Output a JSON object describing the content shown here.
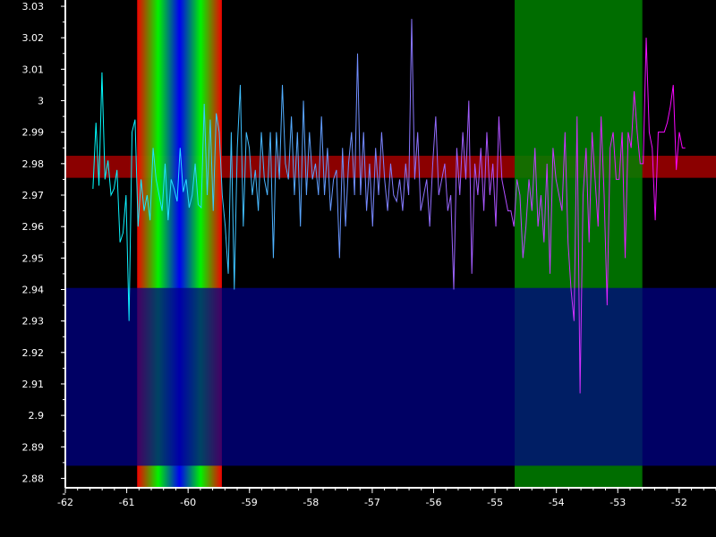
{
  "chart_data": {
    "type": "line",
    "title": "",
    "xlabel": "",
    "ylabel": "",
    "xlim": [
      -62,
      -51.4
    ],
    "ylim": [
      2.877,
      3.032
    ],
    "x_ticks": [
      -62,
      -61,
      -60,
      -59,
      -58,
      -57,
      -56,
      -55,
      -54,
      -53,
      -52
    ],
    "y_ticks": [
      2.88,
      2.89,
      2.9,
      2.91,
      2.92,
      2.93,
      2.94,
      2.95,
      2.96,
      2.97,
      2.98,
      2.99,
      3,
      3.01,
      3.02,
      3.03
    ],
    "x_tick_labels": [
      "-62",
      "-61",
      "-60",
      "-59",
      "-58",
      "-57",
      "-56",
      "-55",
      "-54",
      "-53",
      "-52"
    ],
    "y_tick_labels": [
      "2.88",
      "2.89",
      "2.9",
      "2.91",
      "2.92",
      "2.93",
      "2.94",
      "2.95",
      "2.96",
      "2.97",
      "2.98",
      "2.99",
      "3",
      "3.01",
      "3.02",
      "3.03"
    ],
    "grid": false,
    "regions": {
      "vertical_gradient_band": {
        "x_range": [
          -60.83,
          -59.45
        ],
        "colors": [
          "#ff0000",
          "#00ff00",
          "#0000ff",
          "#00ff00",
          "#ff0000"
        ]
      },
      "vertical_green_band": {
        "x_range": [
          -54.68,
          -52.6
        ],
        "color": "#008000"
      },
      "horizontal_red_band": {
        "y_range": [
          2.9755,
          2.9825
        ],
        "color": "#8b0000"
      },
      "horizontal_blue_band": {
        "y_range": [
          2.884,
          2.9405
        ],
        "color": "#00008b"
      }
    },
    "series": [
      {
        "x_start": -61.55,
        "x_end": -51.9,
        "color_start": "#00ffff",
        "color_end": "#ff00ff",
        "values": [
          2.972,
          2.993,
          2.973,
          3.009,
          2.975,
          2.981,
          2.97,
          2.972,
          2.978,
          2.955,
          2.958,
          2.97,
          2.93,
          2.99,
          2.994,
          2.96,
          2.975,
          2.965,
          2.97,
          2.962,
          2.985,
          2.975,
          2.97,
          2.965,
          2.98,
          2.962,
          2.975,
          2.972,
          2.968,
          2.985,
          2.971,
          2.975,
          2.966,
          2.97,
          2.98,
          2.967,
          2.966,
          2.999,
          2.97,
          2.994,
          2.965,
          2.996,
          2.99,
          2.97,
          2.96,
          2.945,
          2.99,
          2.94,
          2.985,
          3.005,
          2.96,
          2.99,
          2.985,
          2.97,
          2.978,
          2.965,
          2.99,
          2.975,
          2.97,
          2.99,
          2.95,
          2.99,
          2.975,
          3.005,
          2.98,
          2.975,
          2.995,
          2.97,
          2.99,
          2.96,
          3.0,
          2.97,
          2.99,
          2.975,
          2.98,
          2.97,
          2.995,
          2.97,
          2.985,
          2.965,
          2.975,
          2.978,
          2.95,
          2.985,
          2.96,
          2.98,
          2.99,
          2.97,
          3.015,
          2.97,
          2.99,
          2.965,
          2.98,
          2.96,
          2.985,
          2.97,
          2.99,
          2.975,
          2.965,
          2.98,
          2.97,
          2.968,
          2.975,
          2.965,
          2.98,
          2.97,
          3.026,
          2.975,
          2.99,
          2.965,
          2.97,
          2.975,
          2.96,
          2.98,
          2.995,
          2.97,
          2.975,
          2.98,
          2.965,
          2.97,
          2.94,
          2.985,
          2.97,
          2.99,
          2.975,
          3.0,
          2.945,
          2.98,
          2.97,
          2.985,
          2.965,
          2.99,
          2.97,
          2.98,
          2.96,
          2.995,
          2.975,
          2.97,
          2.965,
          2.965,
          2.96,
          2.975,
          2.97,
          2.95,
          2.96,
          2.975,
          2.965,
          2.985,
          2.96,
          2.97,
          2.955,
          2.98,
          2.945,
          2.985,
          2.975,
          2.97,
          2.965,
          2.99,
          2.955,
          2.94,
          2.93,
          2.995,
          2.907,
          2.97,
          2.985,
          2.955,
          2.99,
          2.975,
          2.96,
          2.995,
          2.97,
          2.935,
          2.985,
          2.99,
          2.975,
          2.975,
          2.99,
          2.95,
          2.99,
          2.985,
          3.003,
          2.99,
          2.98,
          2.98,
          3.02,
          2.99,
          2.985,
          2.962,
          2.99,
          2.99,
          2.99,
          2.993,
          2.998,
          3.005,
          2.978,
          2.99,
          2.985,
          2.985
        ]
      }
    ]
  }
}
